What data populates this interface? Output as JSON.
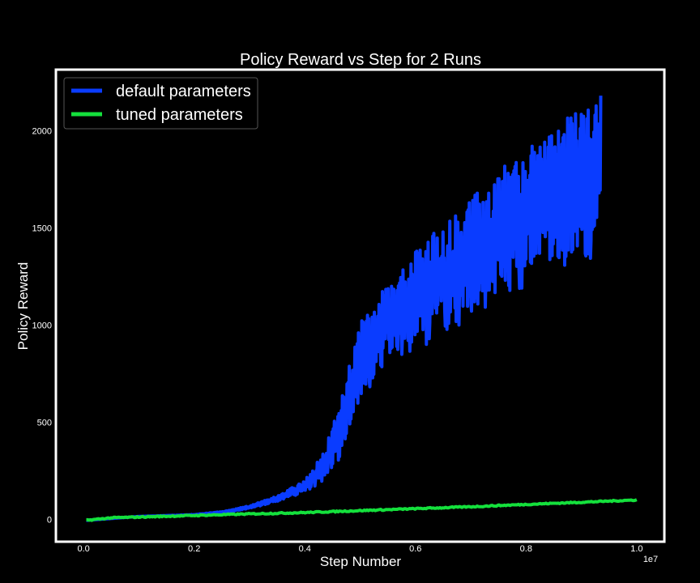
{
  "chart_data": {
    "type": "line",
    "title": "Policy Reward vs Step for 2 Runs",
    "xlabel": "Step Number",
    "ylabel": "Policy Reward",
    "x_offset_label": "1e7",
    "xlim": [
      -0.05,
      1.05
    ],
    "ylim": [
      -115,
      2315
    ],
    "x_ticks": [
      0.0,
      0.2,
      0.4,
      0.6,
      0.8,
      1.0
    ],
    "x_tick_labels": [
      "0.0",
      "0.2",
      "0.4",
      "0.6",
      "0.8",
      "1.0"
    ],
    "y_ticks": [
      0,
      500,
      1000,
      1500,
      2000
    ],
    "y_tick_labels": [
      "0",
      "500",
      "1000",
      "1500",
      "2000"
    ],
    "grid": false,
    "legend_position": "top-left",
    "series": [
      {
        "name": "default parameters",
        "color": "#0a3cff",
        "x": [
          0.005,
          0.1,
          0.2,
          0.25,
          0.3,
          0.35,
          0.4,
          0.43,
          0.46,
          0.5,
          0.55,
          0.6,
          0.65,
          0.7,
          0.75,
          0.8,
          0.85,
          0.9,
          0.935
        ],
        "high": [
          -5,
          15,
          25,
          40,
          70,
          120,
          200,
          330,
          560,
          1020,
          1230,
          1400,
          1520,
          1650,
          1800,
          1900,
          2020,
          2120,
          2200
        ],
        "low": [
          -5,
          15,
          22,
          30,
          55,
          90,
          140,
          190,
          300,
          580,
          800,
          860,
          950,
          1020,
          1100,
          1180,
          1250,
          1300,
          1370
        ]
      },
      {
        "name": "tuned parameters",
        "color": "#14e03c",
        "x": [
          0.005,
          0.05,
          0.1,
          0.2,
          0.3,
          0.4,
          0.5,
          0.6,
          0.7,
          0.8,
          0.9,
          1.0
        ],
        "y": [
          -5,
          8,
          12,
          20,
          28,
          35,
          45,
          55,
          65,
          77,
          88,
          100
        ]
      }
    ]
  }
}
